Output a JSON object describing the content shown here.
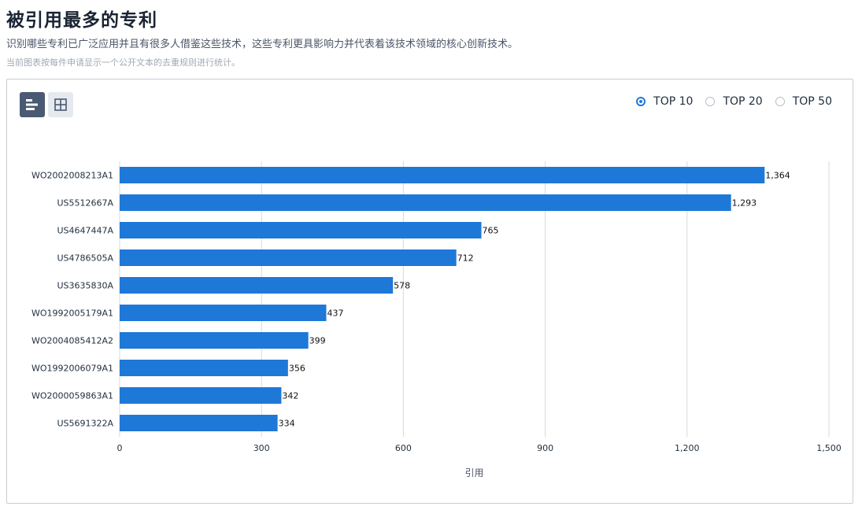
{
  "header": {
    "title": "被引用最多的专利",
    "description": "识别哪些专利已广泛应用并且有很多人借鉴这些技术，这些专利更具影响力并代表着该技术领域的核心创新技术。",
    "note": "当前图表按每件申请显示一个公开文本的去重规则进行统计。"
  },
  "toolbar": {
    "bar_view_icon": "bar-chart-icon",
    "table_view_icon": "grid-table-icon"
  },
  "top_options": [
    {
      "label": "TOP 10",
      "checked": true
    },
    {
      "label": "TOP 20",
      "checked": false
    },
    {
      "label": "TOP 50",
      "checked": false
    }
  ],
  "colors": {
    "bar": "#1e78d7",
    "accent": "#1e78d7",
    "grid": "#d9d9d9"
  },
  "chart_data": {
    "type": "bar",
    "orientation": "horizontal",
    "categories": [
      "WO2002008213A1",
      "US5512667A",
      "US4647447A",
      "US4786505A",
      "US3635830A",
      "WO1992005179A1",
      "WO2004085412A2",
      "WO1992006079A1",
      "WO2000059863A1",
      "US5691322A"
    ],
    "values": [
      1364,
      1293,
      765,
      712,
      578,
      437,
      399,
      356,
      342,
      334
    ],
    "value_labels": [
      "1,364",
      "1,293",
      "765",
      "712",
      "578",
      "437",
      "399",
      "356",
      "342",
      "334"
    ],
    "xticks": [
      0,
      300,
      600,
      900,
      1200,
      1500
    ],
    "xtick_labels": [
      "0",
      "300",
      "600",
      "900",
      "1,200",
      "1,500"
    ],
    "xlim": [
      0,
      1500
    ],
    "xlabel": "引用",
    "ylabel": "",
    "grid": true
  }
}
